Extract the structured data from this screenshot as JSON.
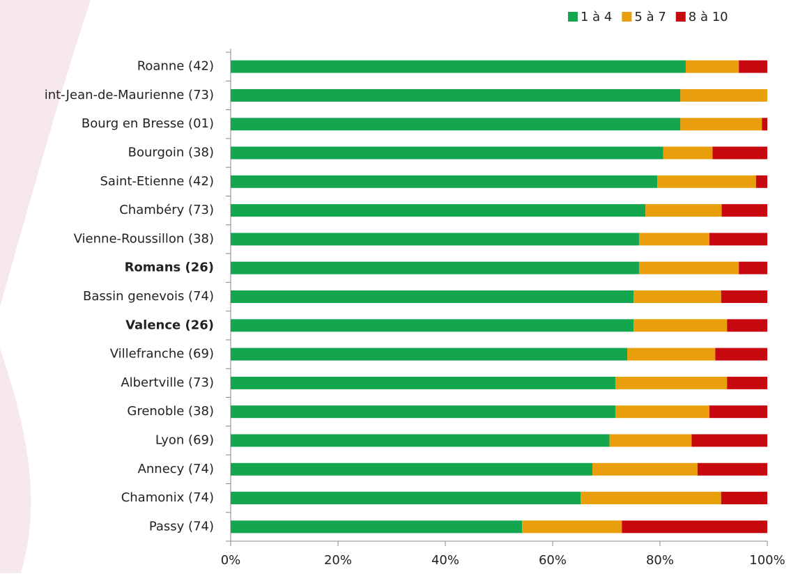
{
  "chart_data": {
    "type": "stacked_barh",
    "categories": [
      "Roanne (42)",
      "int-Jean-de-Maurienne (73)",
      "Bourg en Bresse (01)",
      "Bourgoin (38)",
      "Saint-Etienne (42)",
      "Chambéry (73)",
      "Vienne-Roussillon (38)",
      "Romans (26)",
      "Bassin genevois (74)",
      "Valence (26)",
      "Villefranche (69)",
      "Albertville (73)",
      "Grenoble (38)",
      "Lyon (69)",
      "Annecy (74)",
      "Chamonix (74)",
      "Passy (74)"
    ],
    "highlighted": [
      "Romans (26)",
      "Valence (26)"
    ],
    "highlight_color": "#9b1a82",
    "series": [
      {
        "name": "1 à 4",
        "color": "#13a64f",
        "values": [
          84.8,
          83.8,
          83.8,
          80.6,
          79.5,
          77.3,
          76.1,
          76.1,
          75.1,
          75.1,
          73.9,
          71.7,
          71.7,
          70.6,
          67.4,
          65.2,
          54.3
        ]
      },
      {
        "name": "5 à 7",
        "color": "#e99f0b",
        "values": [
          9.9,
          16.2,
          15.2,
          9.2,
          18.4,
          14.2,
          13.1,
          18.6,
          16.3,
          17.4,
          16.4,
          20.8,
          17.5,
          15.3,
          19.6,
          26.2,
          18.6
        ]
      },
      {
        "name": "8 à 10",
        "color": "#c8080f",
        "values": [
          5.3,
          0,
          1.0,
          10.2,
          2.1,
          8.5,
          10.8,
          5.3,
          8.6,
          7.5,
          9.7,
          7.5,
          10.8,
          14.1,
          13.0,
          8.6,
          27.1
        ]
      }
    ],
    "xlim": [
      0,
      100
    ],
    "xticks": [
      {
        "value": 0,
        "label": "0%"
      },
      {
        "value": 20,
        "label": "20%"
      },
      {
        "value": 40,
        "label": "40%"
      },
      {
        "value": 60,
        "label": "60%"
      },
      {
        "value": 80,
        "label": "80%"
      },
      {
        "value": 100,
        "label": "100%"
      }
    ],
    "legend": "top-right"
  }
}
